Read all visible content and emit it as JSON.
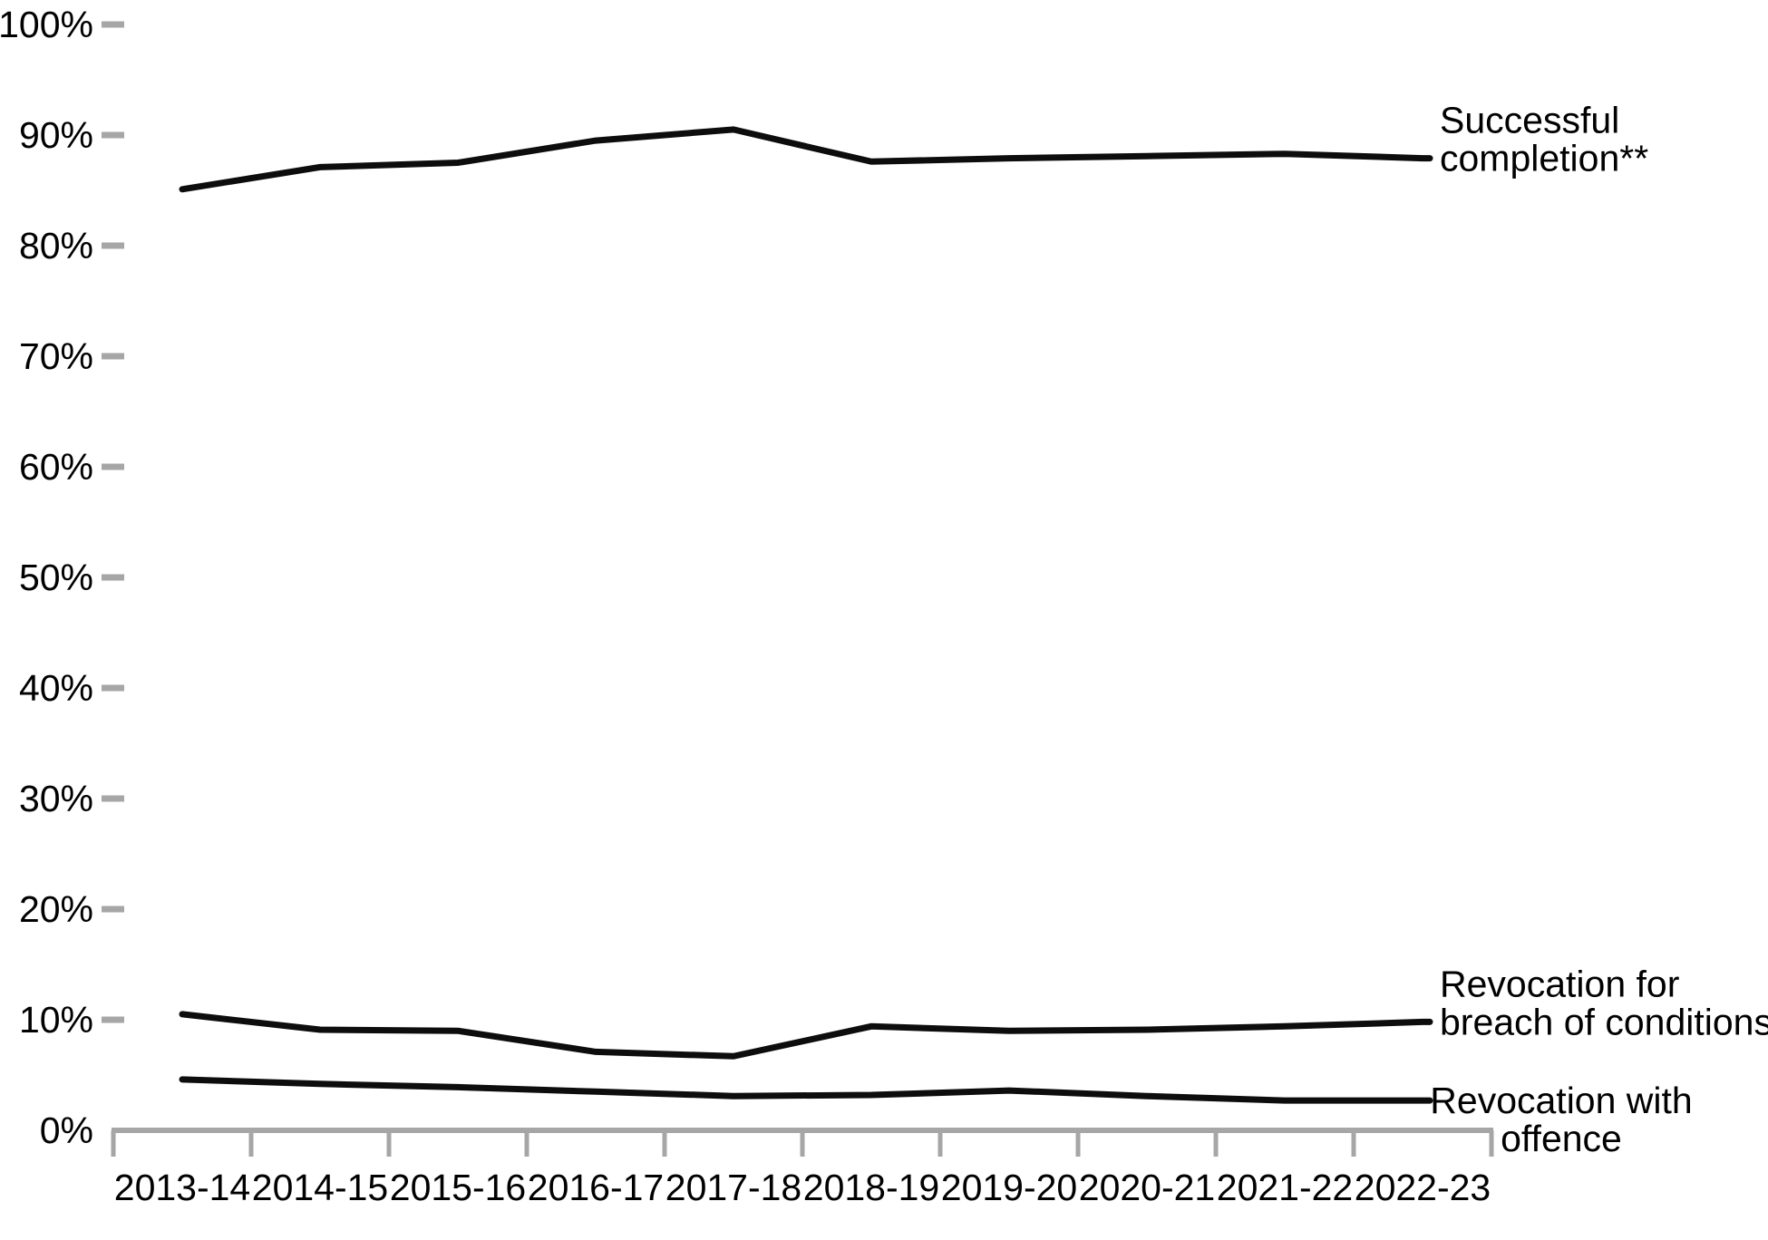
{
  "chart_data": {
    "type": "line",
    "title": "",
    "categories": [
      "2013-14",
      "2014-15",
      "2015-16",
      "2016-17",
      "2017-18",
      "2018-19",
      "2019-20",
      "2020-21",
      "2021-22",
      "2022-23"
    ],
    "series": [
      {
        "name": "Successful completion**",
        "label_lines": [
          "Successful",
          "completion**"
        ],
        "label_align": "left",
        "values": [
          85.1,
          87.1,
          87.5,
          89.5,
          90.5,
          87.6,
          87.9,
          88.1,
          88.3,
          87.9
        ]
      },
      {
        "name": "Revocation for breach of conditions",
        "label_lines": [
          "Revocation for",
          "breach of conditions"
        ],
        "label_align": "left",
        "values": [
          10.5,
          9.1,
          9.0,
          7.1,
          6.7,
          9.4,
          9.0,
          9.1,
          9.4,
          9.8
        ]
      },
      {
        "name": "Revocation with offence",
        "label_lines": [
          "Revocation with",
          "offence"
        ],
        "label_align": "center",
        "values": [
          4.6,
          4.2,
          3.9,
          3.5,
          3.1,
          3.2,
          3.6,
          3.1,
          2.7,
          2.7
        ]
      }
    ],
    "y_axis": {
      "min": 0,
      "max": 100,
      "step": 10,
      "tick_labels": [
        "0%",
        "10%",
        "20%",
        "30%",
        "40%",
        "50%",
        "60%",
        "70%",
        "80%",
        "90%",
        "100%"
      ],
      "format": "percent"
    },
    "x_axis": {
      "tick_marks": "between-categories"
    },
    "grid": false,
    "legend_position": "end-of-line",
    "colors": {
      "line": "#0d0d0d",
      "axis": "#a6a6a6",
      "text": "#000000",
      "background": "#ffffff"
    }
  }
}
